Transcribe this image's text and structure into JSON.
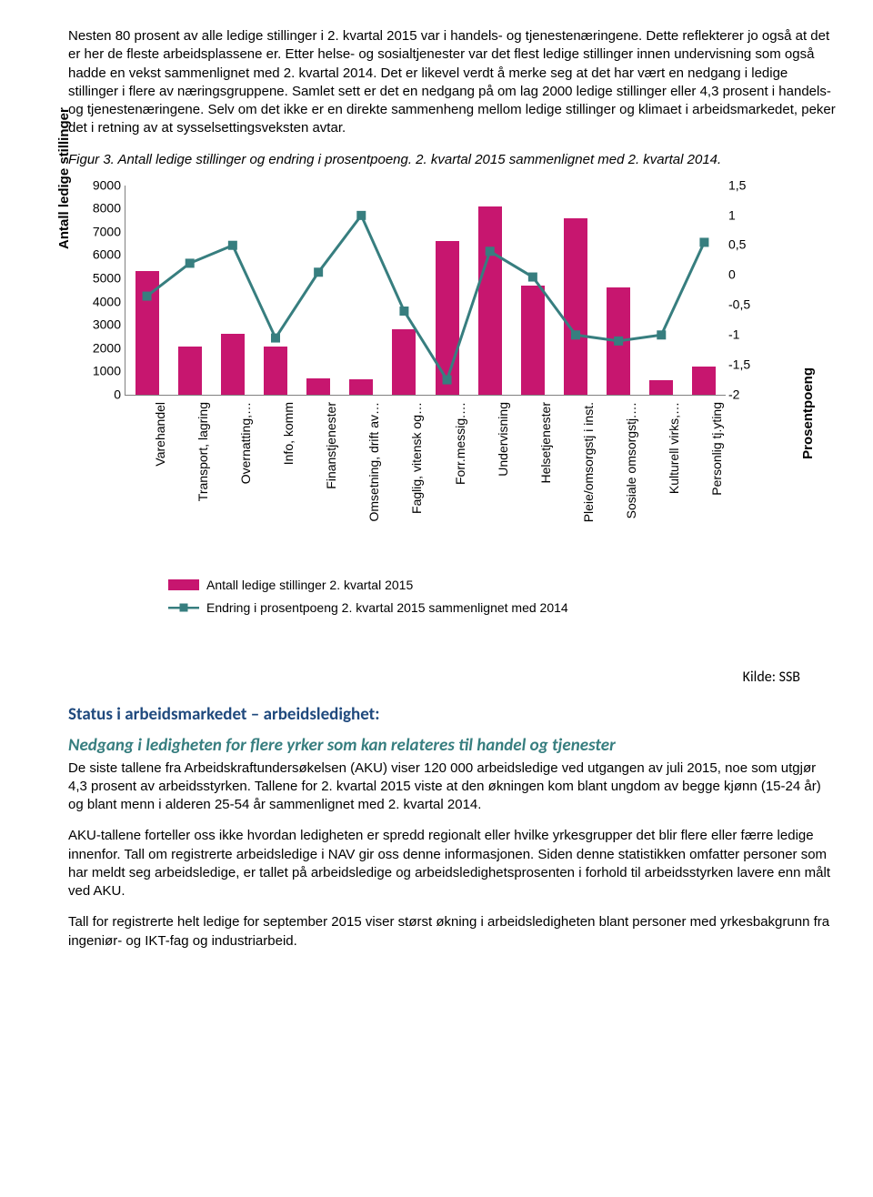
{
  "para1": "Nesten 80 prosent av alle ledige stillinger i 2. kvartal 2015 var i handels- og tjenestenæringene. Dette reflekterer jo også at det er her de fleste arbeidsplassene er. Etter helse- og sosialtjenester var det flest ledige stillinger innen undervisning som også hadde en vekst sammenlignet med 2. kvartal 2014. Det er likevel verdt å merke seg at det har vært en nedgang i ledige stillinger i flere av næringsgruppene. Samlet sett er det en nedgang på om lag 2000 ledige stillinger eller 4,3 prosent i handels- og tjenestenæringene. Selv om det ikke er en direkte sammenheng mellom ledige stillinger og klimaet i arbeidsmarkedet, peker det i retning av at sysselsettingsveksten avtar.",
  "fig_caption": "Figur 3. Antall ledige stillinger og endring i prosentpoeng. 2. kvartal 2015 sammenlignet med 2. kvartal 2014.",
  "source": "Kilde: SSB",
  "h_status": "Status i arbeidsmarkedet – arbeidsledighet:",
  "h_sub": "Nedgang i ledigheten for flere yrker som kan relateres til handel og tjenester",
  "para2": "De siste tallene fra Arbeidskraftundersøkelsen (AKU) viser 120 000 arbeidsledige ved utgangen av juli 2015, noe som utgjør 4,3 prosent av arbeidsstyrken. Tallene for 2. kvartal 2015 viste at den økningen kom blant ungdom av begge kjønn (15-24 år) og blant menn i alderen 25-54 år sammenlignet med 2. kvartal 2014.",
  "para3": "AKU-tallene forteller oss ikke hvordan ledigheten er spredd regionalt eller hvilke yrkesgrupper det blir flere eller færre ledige innenfor. Tall om registrerte arbeidsledige i NAV gir oss denne informasjonen. Siden denne statistikken omfatter personer som har meldt seg arbeidsledige, er tallet på arbeidsledige og arbeidsledighetsprosenten i forhold til arbeidsstyrken lavere enn målt ved AKU.",
  "para4": "Tall for registrerte helt ledige for september 2015 viser størst økning i arbeidsledigheten blant personer med yrkesbakgrunn fra ingeniør- og IKT-fag og industriarbeid.",
  "chart": {
    "bar_color": "#c7166f",
    "line_color": "#377e7f",
    "marker_color": "#377e7f",
    "grid_color": "#808080",
    "y_left_label": "Antall ledige stillinger",
    "y_right_label": "Prosentpoeng",
    "y_left_min": 0,
    "y_left_max": 9000,
    "y_left_step": 1000,
    "y_left_ticks": [
      "0",
      "1000",
      "2000",
      "3000",
      "4000",
      "5000",
      "6000",
      "7000",
      "8000",
      "9000"
    ],
    "y_right_min": -2.0,
    "y_right_max": 1.5,
    "y_right_step": 0.5,
    "y_right_ticks": [
      "-2",
      "-1,5",
      "-1",
      "-0,5",
      "0",
      "0,5",
      "1",
      "1,5"
    ],
    "categories": [
      "Varehandel",
      "Transport, lagring",
      "Overnatting,…",
      "Info, komm",
      "Finanstjenester",
      "Omsetning, drift av…",
      "Faglig, vitensk og…",
      "Forr.messig.…",
      "Undervisning",
      "Helsetjenester",
      "Pleie/omsorgstj i inst.",
      "Sosiale omsorgstj.…",
      "Kulturell virks,…",
      "Personlig tj.yting"
    ],
    "bar_values": [
      5300,
      2050,
      2600,
      2050,
      700,
      650,
      2800,
      6600,
      8100,
      4700,
      7600,
      4600,
      600,
      1200
    ],
    "line_values": [
      -0.35,
      0.2,
      0.5,
      -1.05,
      0.05,
      1.0,
      -0.6,
      -1.75,
      0.4,
      -0.03,
      -1.0,
      -1.1,
      -1.0,
      0.55
    ],
    "legend_bar": "Antall ledige stillinger 2. kvartal 2015",
    "legend_line": "Endring i prosentpoeng 2. kvartal 2015 sammenlignet med 2014"
  }
}
